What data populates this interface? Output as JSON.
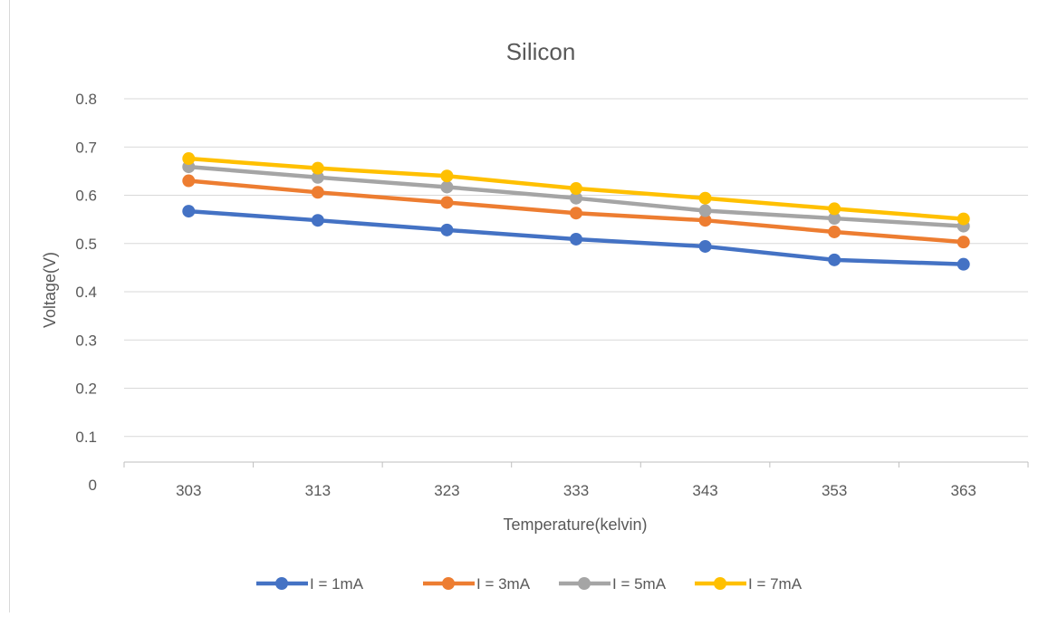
{
  "chart_data": {
    "type": "line",
    "title": "Silicon",
    "xlabel": "Temperature(kelvin)",
    "ylabel": "Voltage(V)",
    "categories": [
      "303",
      "313",
      "323",
      "333",
      "343",
      "353",
      "363"
    ],
    "ylim": [
      0,
      0.8
    ],
    "yticks": [
      "0",
      "0.1",
      "0.2",
      "0.3",
      "0.4",
      "0.5",
      "0.6",
      "0.7",
      "0.8"
    ],
    "grid": true,
    "legend_position": "bottom",
    "series": [
      {
        "name": "I = 1mA",
        "color": "#4472C4",
        "values": [
          0.567,
          0.548,
          0.528,
          0.509,
          0.494,
          0.466,
          0.457
        ]
      },
      {
        "name": "I = 3mA",
        "color": "#ED7D31",
        "values": [
          0.63,
          0.606,
          0.585,
          0.563,
          0.548,
          0.524,
          0.503
        ]
      },
      {
        "name": "I = 5mA",
        "color": "#A5A5A5",
        "values": [
          0.659,
          0.637,
          0.617,
          0.594,
          0.568,
          0.552,
          0.536
        ]
      },
      {
        "name": "I = 7mA",
        "color": "#FFC000",
        "values": [
          0.676,
          0.656,
          0.64,
          0.614,
          0.594,
          0.572,
          0.551
        ]
      }
    ]
  }
}
